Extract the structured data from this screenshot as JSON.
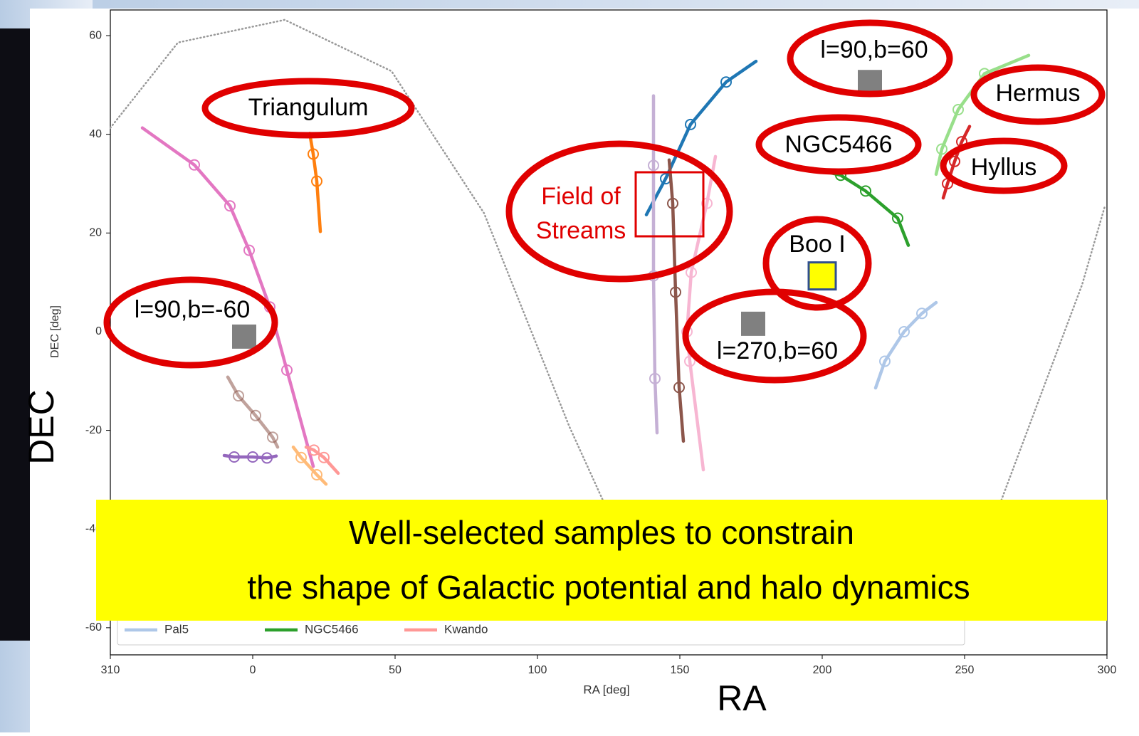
{
  "chart_data": {
    "type": "line",
    "xlabel": "RA [deg]",
    "ylabel": "DEC [deg]",
    "big_xlabel": "RA",
    "big_ylabel": "DEC",
    "xlim": [
      -50,
      300
    ],
    "xticks": [
      {
        "value": -50,
        "label": "310"
      },
      0,
      50,
      100,
      150,
      200,
      250,
      300
    ],
    "ylim": [
      -65.5,
      65.2
    ],
    "yticks": [
      -60,
      -40,
      -20,
      0,
      20,
      40,
      60
    ],
    "grid": false,
    "series": [
      {
        "color": "#e377c2",
        "x": [
          -38.75,
          -20.5,
          -8,
          -1.25,
          6,
          12,
          21.25
        ],
        "values": [
          41.3,
          33.8,
          25.5,
          16.5,
          5,
          -7.8,
          -27.3
        ]
      },
      {
        "color": "#ff7f0e",
        "x": [
          20,
          21.25,
          22.5,
          23.75
        ],
        "values": [
          40.2,
          36,
          30.5,
          20.3
        ]
      },
      {
        "color": "#8c564b",
        "alpha": 0.55,
        "x": [
          -8.75,
          -5,
          1,
          7,
          8.75
        ],
        "values": [
          -9.2,
          -13,
          -17,
          -21.4,
          -23.4
        ]
      },
      {
        "color": "#9467bd",
        "x": [
          -10,
          -6.5,
          0,
          5,
          8.25
        ],
        "values": [
          -25.1,
          -25.4,
          -25.4,
          -25.6,
          -25.2
        ]
      },
      {
        "color": "#ffbb78",
        "x": [
          14.25,
          17,
          22.5,
          25.75
        ],
        "values": [
          -23.4,
          -25.5,
          -29,
          -30.9
        ]
      },
      {
        "name": "Kwando",
        "color": "#ff9896",
        "x": [
          18.75,
          21.5,
          25,
          30
        ],
        "values": [
          -23.4,
          -24,
          -25.5,
          -28.7
        ]
      },
      {
        "color": "#1f77b4",
        "x": [
          138.25,
          145,
          153.75,
          166.25,
          176.75
        ],
        "values": [
          23.7,
          31,
          42,
          50.6,
          54.8
        ]
      },
      {
        "color": "#c5b0d5",
        "x": [
          140.75,
          140.75,
          140.75,
          141.25,
          142
        ],
        "values": [
          47.8,
          33.7,
          11.3,
          -9.5,
          -20.5
        ]
      },
      {
        "color": "#8c564b",
        "x": [
          146.25,
          147.5,
          148.5,
          149.75,
          151.25
        ],
        "values": [
          34.8,
          26,
          8,
          -11.3,
          -22.2
        ]
      },
      {
        "color": "#f7b6d2",
        "x": [
          162.5,
          159.5,
          154,
          152.5,
          153.5,
          158.25
        ],
        "values": [
          35.5,
          26,
          12,
          0,
          -6,
          -28
        ]
      },
      {
        "name": "NGC5466",
        "color": "#2ca02c",
        "x": [
          200,
          206.5,
          215.25,
          226.5,
          230.25
        ],
        "values": [
          32.6,
          31.7,
          28.5,
          23,
          17.5
        ]
      },
      {
        "color": "#98df8a",
        "x": [
          240,
          242,
          247.75,
          257,
          272.5
        ],
        "values": [
          31.9,
          37,
          45,
          52.3,
          56
        ]
      },
      {
        "color": "#d62728",
        "x": [
          242.5,
          244,
          246.5,
          249,
          251.75
        ],
        "values": [
          27.1,
          30,
          34.5,
          38.5,
          41.6
        ]
      },
      {
        "name": "Pal5",
        "color": "#aec7e8",
        "x": [
          218.75,
          222,
          228.75,
          235,
          240
        ],
        "values": [
          -11.4,
          -6,
          0,
          3.7,
          5.9
        ]
      },
      {
        "color": "#999999",
        "style": "dotted",
        "x": [
          -50,
          -26.25,
          11.25,
          48.75,
          81.25,
          111.25,
          136.25,
          173.75,
          211.25,
          261.25,
          291.25,
          299.25
        ],
        "values": [
          41.3,
          58.6,
          63.2,
          52.8,
          24,
          -19.3,
          -51,
          -63.3,
          -59.7,
          -36.7,
          9.5,
          25.4
        ]
      }
    ],
    "legend_order": [
      "Pal5",
      "NGC5466",
      "Kwando"
    ],
    "points": [
      {
        "x": -3,
        "y": -1,
        "color": "#808080"
      },
      {
        "x": 216.75,
        "y": 50.6,
        "color": "#808080"
      },
      {
        "x": 175.75,
        "y": 1.6,
        "color": "#808080"
      },
      {
        "x": 200,
        "y": 11.3,
        "color": "#ffff00",
        "edgecolor": "#2f4f8f"
      }
    ],
    "annotations": [
      {
        "lines": [
          "Triangulum"
        ],
        "color": "#000000"
      },
      {
        "lines": [
          "Field of",
          "Streams"
        ],
        "color": "#e00000"
      },
      {
        "lines": [
          "l=90,b=60"
        ],
        "color": "#000000"
      },
      {
        "lines": [
          "Hermus"
        ],
        "color": "#000000"
      },
      {
        "lines": [
          "NGC5466"
        ],
        "color": "#000000"
      },
      {
        "lines": [
          "Hyllus"
        ],
        "color": "#000000"
      },
      {
        "lines": [
          "Boo I"
        ],
        "color": "#000000"
      },
      {
        "lines": [
          "l=90,b=-60"
        ],
        "color": "#000000"
      },
      {
        "lines": [
          "l=270,b=60"
        ],
        "color": "#000000"
      }
    ],
    "banner": [
      "Well-selected samples to constrain",
      "the shape of Galactic potential and halo dynamics"
    ]
  }
}
